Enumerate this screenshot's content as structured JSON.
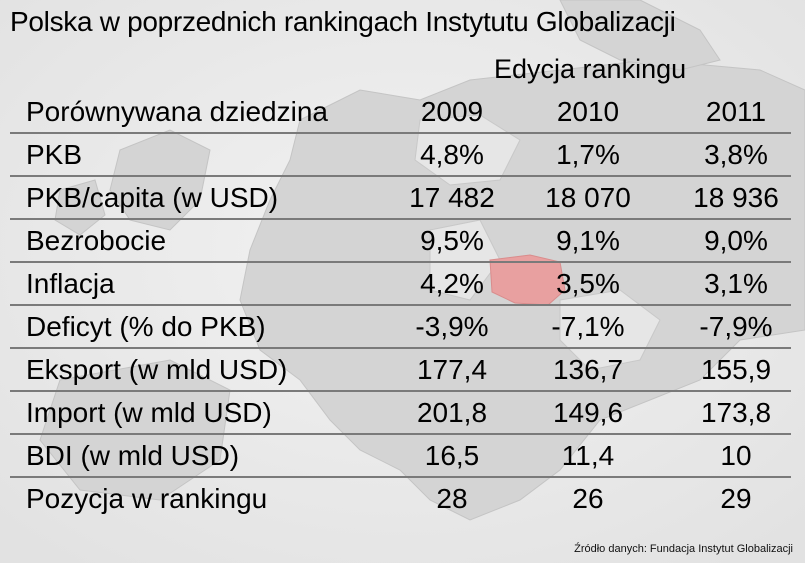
{
  "title": "Polska w poprzednich rankingach Instytutu Globalizacji",
  "edition_label": "Edycja rankingu",
  "source": "Źródło danych: Fundacja Instytut Globalizacji",
  "chart_data": {
    "type": "table",
    "columns": [
      "Porównywana dziedzina",
      "2009",
      "2010",
      "2011"
    ],
    "rows": [
      {
        "label": "PKB",
        "values": [
          "4,8%",
          "1,7%",
          "3,8%"
        ]
      },
      {
        "label": "PKB/capita (w USD)",
        "values": [
          "17 482",
          "18 070",
          "18 936"
        ]
      },
      {
        "label": "Bezrobocie",
        "values": [
          "9,5%",
          "9,1%",
          "9,0%"
        ]
      },
      {
        "label": "Inflacja",
        "values": [
          "4,2%",
          "3,5%",
          "3,1%"
        ]
      },
      {
        "label": "Deficyt (% do PKB)",
        "values": [
          "-3,9%",
          "-7,1%",
          "-7,9%"
        ]
      },
      {
        "label": "Eksport (w mld USD)",
        "values": [
          "177,4",
          "136,7",
          "155,9"
        ]
      },
      {
        "label": "Import (w mld USD)",
        "values": [
          "201,8",
          "149,6",
          "173,8"
        ]
      },
      {
        "label": "BDI (w mld USD)",
        "values": [
          "16,5",
          "11,4",
          "10"
        ]
      },
      {
        "label": "Pozycja w rankingu",
        "values": [
          "28",
          "26",
          "29"
        ]
      }
    ]
  }
}
